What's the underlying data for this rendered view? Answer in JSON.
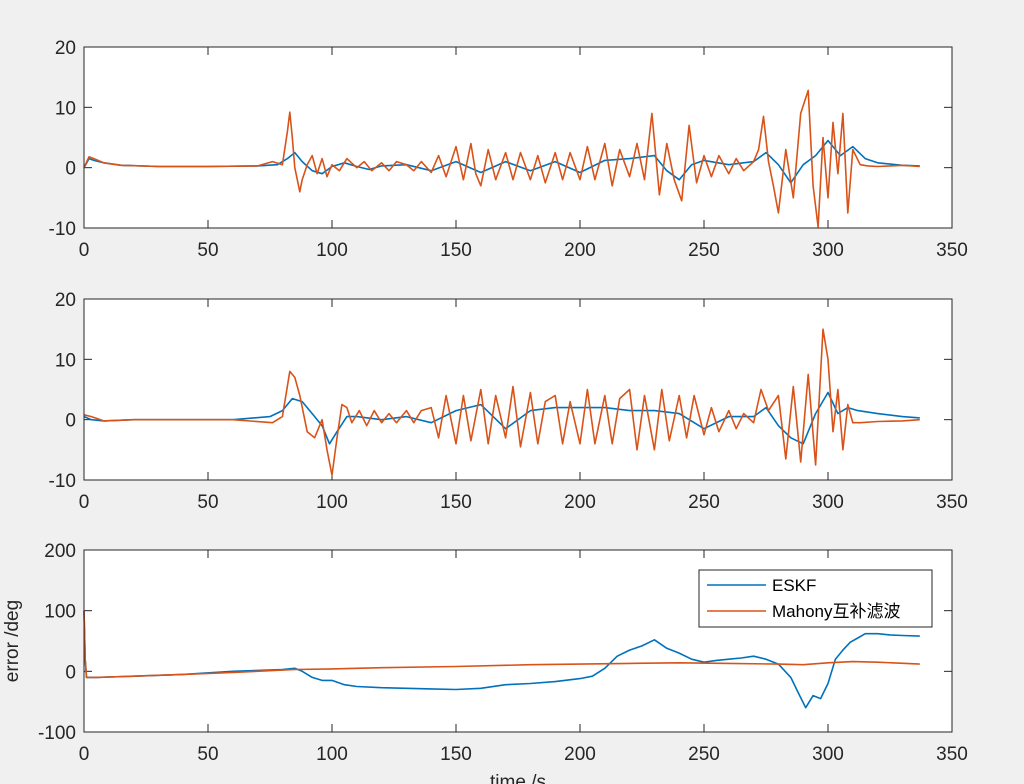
{
  "colors": {
    "eskf": "#0072BD",
    "mahony": "#D95319",
    "axes_bg": "#ffffff",
    "figure_bg": "#f0f0f0",
    "axis_line": "#262626"
  },
  "chart_data": [
    {
      "type": "line",
      "title": "",
      "xlabel": "",
      "ylabel": "",
      "xlim": [
        0,
        350
      ],
      "ylim": [
        -10,
        20
      ],
      "xticks": [
        0,
        50,
        100,
        150,
        200,
        250,
        300,
        350
      ],
      "yticks": [
        -10,
        0,
        10,
        20
      ],
      "xtick_labels": [
        "0",
        "50",
        "100",
        "150",
        "200",
        "250",
        "300",
        "350"
      ],
      "ytick_labels": [
        "-10",
        "0",
        "10",
        "20"
      ],
      "grid": false,
      "series": [
        {
          "name": "ESKF",
          "color": "#0072BD",
          "x": [
            0,
            2,
            4,
            8,
            15,
            30,
            50,
            70,
            78,
            82,
            85,
            88,
            92,
            96,
            100,
            105,
            110,
            115,
            120,
            130,
            140,
            150,
            160,
            170,
            180,
            190,
            200,
            210,
            220,
            230,
            235,
            240,
            245,
            250,
            260,
            270,
            275,
            280,
            285,
            290,
            295,
            300,
            305,
            310,
            315,
            320,
            330,
            337
          ],
          "y": [
            0,
            1.5,
            1.2,
            0.8,
            0.4,
            0.2,
            0.2,
            0.3,
            0.5,
            1.5,
            2.5,
            1.0,
            -0.5,
            -1.0,
            0.2,
            0.8,
            0.2,
            -0.3,
            0.3,
            0.5,
            -0.5,
            1.0,
            -0.8,
            1.0,
            -0.5,
            1.0,
            -0.8,
            1.2,
            1.5,
            2.0,
            -0.5,
            -2.0,
            0.5,
            1.2,
            0.5,
            1.0,
            2.5,
            0.5,
            -2.5,
            0.5,
            2.0,
            4.5,
            2.0,
            3.5,
            1.5,
            0.8,
            0.4,
            0.3
          ]
        },
        {
          "name": "Mahony互补滤波",
          "color": "#D95319",
          "x": [
            0,
            2,
            4,
            8,
            15,
            30,
            50,
            70,
            76,
            80,
            82,
            83,
            84,
            85,
            86,
            87,
            88,
            90,
            92,
            94,
            96,
            98,
            100,
            103,
            106,
            110,
            113,
            116,
            120,
            123,
            126,
            130,
            133,
            136,
            140,
            143,
            146,
            150,
            153,
            156,
            158,
            160,
            163,
            166,
            170,
            173,
            176,
            180,
            183,
            186,
            190,
            193,
            196,
            200,
            203,
            206,
            210,
            213,
            216,
            220,
            223,
            226,
            229,
            232,
            235,
            238,
            241,
            244,
            247,
            250,
            253,
            256,
            260,
            263,
            266,
            270,
            272,
            274,
            276,
            278,
            280,
            283,
            286,
            289,
            292,
            294,
            296,
            298,
            300,
            302,
            304,
            306,
            308,
            310,
            313,
            316,
            320,
            325,
            330,
            337
          ],
          "y": [
            0,
            1.8,
            1.5,
            0.8,
            0.4,
            0.2,
            0.2,
            0.3,
            1.0,
            0.5,
            6.0,
            9.2,
            5.0,
            0.0,
            -2.0,
            -4.0,
            -2.0,
            0.5,
            2.0,
            -1.0,
            1.5,
            -1.5,
            0.5,
            -0.5,
            1.5,
            0.0,
            1.0,
            -0.5,
            0.8,
            -0.5,
            1.0,
            0.5,
            -0.5,
            1.0,
            -0.8,
            2.0,
            -1.5,
            3.5,
            -2.0,
            4.0,
            -1.0,
            -3.0,
            3.0,
            -2.0,
            2.5,
            -2.0,
            2.5,
            -2.0,
            2.0,
            -2.5,
            2.5,
            -2.0,
            2.5,
            -2.0,
            3.5,
            -2.0,
            4.0,
            -3.0,
            3.0,
            -1.5,
            4.0,
            -2.0,
            9.0,
            -4.5,
            4.0,
            -2.0,
            -5.5,
            7.0,
            -2.5,
            2.0,
            -1.5,
            2.0,
            -1.0,
            1.5,
            -0.5,
            1.0,
            3.0,
            8.5,
            1.0,
            -3.0,
            -7.5,
            3.0,
            -5.0,
            9.0,
            12.8,
            -3.0,
            -9.8,
            5.0,
            -5.0,
            7.5,
            -1.0,
            9.0,
            -7.5,
            3.0,
            0.5,
            0.3,
            0.2,
            0.3,
            0.4,
            0.2
          ]
        }
      ]
    },
    {
      "type": "line",
      "title": "",
      "xlabel": "",
      "ylabel": "",
      "xlim": [
        0,
        350
      ],
      "ylim": [
        -10,
        20
      ],
      "xticks": [
        0,
        50,
        100,
        150,
        200,
        250,
        300,
        350
      ],
      "yticks": [
        -10,
        0,
        10,
        20
      ],
      "xtick_labels": [
        "0",
        "50",
        "100",
        "150",
        "200",
        "250",
        "300",
        "350"
      ],
      "ytick_labels": [
        "-10",
        "0",
        "10",
        "20"
      ],
      "grid": false,
      "series": [
        {
          "name": "ESKF",
          "color": "#0072BD",
          "x": [
            0,
            3,
            8,
            20,
            40,
            60,
            75,
            80,
            84,
            88,
            92,
            96,
            99,
            102,
            106,
            110,
            120,
            130,
            140,
            150,
            160,
            170,
            180,
            190,
            200,
            210,
            220,
            230,
            240,
            250,
            260,
            270,
            275,
            280,
            285,
            290,
            295,
            300,
            304,
            308,
            312,
            320,
            330,
            337
          ],
          "y": [
            0.5,
            0.0,
            -0.2,
            0.0,
            0.0,
            0.0,
            0.5,
            1.5,
            3.5,
            3.0,
            1.0,
            -1.0,
            -4.0,
            -2.0,
            0.5,
            0.5,
            0.0,
            0.5,
            -0.5,
            1.5,
            2.5,
            -1.5,
            1.5,
            2.0,
            2.0,
            2.0,
            1.5,
            1.5,
            1.0,
            -1.5,
            0.5,
            0.5,
            2.0,
            -1.0,
            -3.0,
            -4.0,
            1.0,
            4.5,
            1.0,
            2.0,
            1.5,
            1.0,
            0.5,
            0.3
          ]
        },
        {
          "name": "Mahony互补滤波",
          "color": "#D95319",
          "x": [
            0,
            3,
            8,
            20,
            40,
            60,
            76,
            80,
            83,
            85,
            87,
            90,
            93,
            96,
            98,
            100,
            102,
            104,
            106,
            108,
            111,
            114,
            117,
            120,
            123,
            126,
            130,
            133,
            136,
            140,
            143,
            146,
            150,
            153,
            156,
            160,
            163,
            166,
            170,
            173,
            176,
            180,
            183,
            186,
            190,
            193,
            196,
            200,
            203,
            206,
            210,
            213,
            216,
            220,
            223,
            226,
            230,
            233,
            236,
            240,
            243,
            246,
            250,
            253,
            256,
            260,
            263,
            266,
            270,
            273,
            276,
            280,
            283,
            286,
            289,
            292,
            295,
            298,
            300,
            302,
            304,
            306,
            308,
            310,
            313,
            320,
            330,
            337
          ],
          "y": [
            0.8,
            0.5,
            -0.2,
            0.0,
            0.0,
            0.0,
            -0.5,
            0.5,
            8.0,
            7.0,
            4.0,
            -2.0,
            -3.0,
            0.0,
            -5.0,
            -9.2,
            -3.0,
            2.5,
            2.0,
            -0.5,
            1.5,
            -1.0,
            1.5,
            -0.5,
            1.0,
            -0.5,
            1.5,
            -0.5,
            1.5,
            2.0,
            -3.0,
            4.0,
            -4.0,
            4.0,
            -3.5,
            5.0,
            -4.0,
            4.0,
            -3.0,
            5.5,
            -4.5,
            4.5,
            -4.0,
            3.0,
            4.0,
            -4.0,
            3.0,
            -4.0,
            5.0,
            -4.0,
            4.0,
            -4.0,
            3.5,
            5.0,
            -5.0,
            4.0,
            -5.0,
            5.0,
            -3.5,
            4.0,
            -3.0,
            4.0,
            -2.5,
            2.0,
            -2.0,
            1.5,
            -1.5,
            1.0,
            -0.5,
            5.0,
            1.5,
            4.0,
            -6.5,
            5.5,
            -7.0,
            7.5,
            -7.5,
            15.0,
            10.0,
            -2.0,
            5.0,
            -5.0,
            2.5,
            -0.5,
            -0.5,
            -0.3,
            -0.2,
            0.0
          ]
        }
      ]
    },
    {
      "type": "line",
      "title": "",
      "xlabel": "time /s",
      "ylabel": "error /deg",
      "xlim": [
        0,
        350
      ],
      "ylim": [
        -100,
        200
      ],
      "xticks": [
        0,
        50,
        100,
        150,
        200,
        250,
        300,
        350
      ],
      "yticks": [
        -100,
        0,
        100,
        200
      ],
      "xtick_labels": [
        "0",
        "50",
        "100",
        "150",
        "200",
        "250",
        "300",
        "350"
      ],
      "ytick_labels": [
        "-100",
        "0",
        "100",
        "200"
      ],
      "grid": false,
      "legend": {
        "placement": "top-right",
        "entries": [
          "ESKF",
          "Mahony互补滤波"
        ]
      },
      "series": [
        {
          "name": "ESKF",
          "color": "#0072BD",
          "x": [
            0,
            0.5,
            1,
            5,
            20,
            40,
            60,
            80,
            85,
            88,
            92,
            96,
            100,
            105,
            110,
            120,
            130,
            140,
            150,
            160,
            170,
            180,
            190,
            200,
            205,
            210,
            215,
            220,
            225,
            230,
            235,
            240,
            245,
            250,
            255,
            260,
            265,
            270,
            275,
            280,
            285,
            288,
            291,
            294,
            297,
            300,
            303,
            306,
            309,
            312,
            315,
            320,
            325,
            330,
            337
          ],
          "y": [
            100,
            20,
            -10,
            -10,
            -8,
            -5,
            0,
            3,
            5,
            0,
            -10,
            -15,
            -15,
            -22,
            -25,
            -27,
            -28,
            -29,
            -30,
            -28,
            -22,
            -20,
            -17,
            -12,
            -8,
            5,
            25,
            35,
            42,
            52,
            38,
            30,
            20,
            15,
            18,
            20,
            22,
            25,
            20,
            12,
            -10,
            -35,
            -60,
            -40,
            -45,
            -20,
            20,
            35,
            48,
            55,
            62,
            62,
            60,
            59,
            58
          ]
        },
        {
          "name": "Mahony互补滤波",
          "color": "#D95319",
          "x": [
            0,
            0.5,
            1,
            5,
            20,
            40,
            60,
            80,
            85,
            100,
            120,
            150,
            180,
            200,
            220,
            240,
            260,
            280,
            290,
            300,
            310,
            320,
            337
          ],
          "y": [
            100,
            20,
            -10,
            -10,
            -8,
            -5,
            -2,
            2,
            3,
            4,
            6,
            8,
            11,
            12,
            13,
            14,
            13,
            12,
            11,
            14,
            16,
            15,
            12
          ]
        }
      ]
    }
  ]
}
